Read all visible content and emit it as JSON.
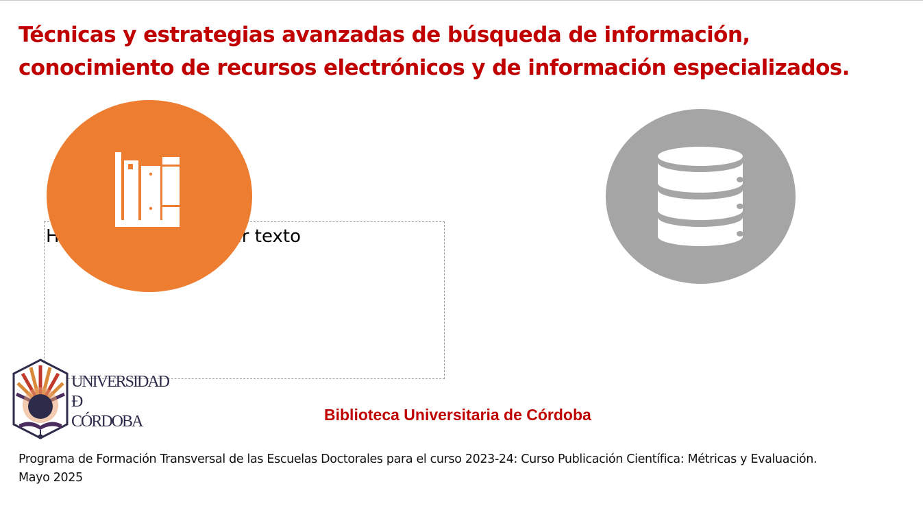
{
  "slide": {
    "title_line1": "Técnicas y estrategias avanzadas de búsqueda de información,",
    "title_line2": "conocimiento de recursos electrónicos y de información especializados.",
    "placeholder_text": "Haga clic para agregar texto",
    "library_name": "Biblioteca Universitaria de Córdoba",
    "footer_line1": "Programa de Formación Transversal de las Escuelas Doctorales para el curso 2023-24: Curso Publicación Científica: Métricas y Evaluación.",
    "footer_line2": "Mayo 2025"
  },
  "logo": {
    "line1": "UNIVERSIDAD",
    "line2": "Ð",
    "line3": "CÓRDOBA"
  },
  "icons": {
    "books": "books-icon",
    "database": "database-icon",
    "logo": "university-logo"
  },
  "colors": {
    "title": "#c00000",
    "accent_orange": "#ed7d31",
    "accent_gray": "#a5a5a5",
    "logo_purple": "#4b2c5e",
    "logo_red": "#c0392b"
  }
}
